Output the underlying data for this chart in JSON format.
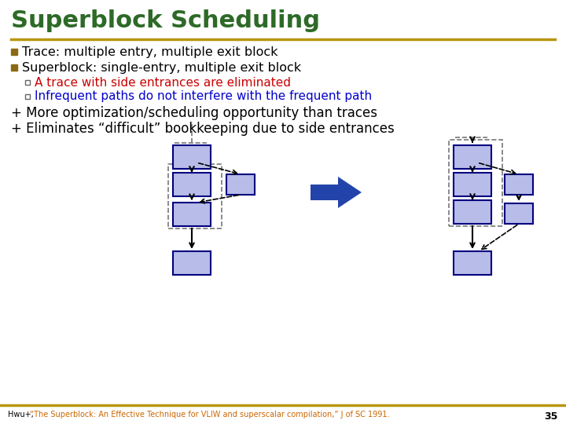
{
  "title": "Superblock Scheduling",
  "title_color": "#2d6a27",
  "title_fontsize": 22,
  "sep_color": "#b8960c",
  "bg_color": "#ffffff",
  "bullet_color": "#8B6914",
  "bullet1": "Trace: multiple entry, multiple exit block",
  "bullet2": "Superblock: single-entry, multiple exit block",
  "sub1_color": "#cc0000",
  "sub1": "A trace with side entrances are eliminated",
  "sub2_color": "#0000cc",
  "sub2": "Infrequent paths do not interfere with the frequent path",
  "plus1": "+ More optimization/scheduling opportunity than traces",
  "plus2": "+ Eliminates “difficult” bookkeeping due to side entrances",
  "block_fill": "#b8bce8",
  "block_edge": "#000080",
  "arrow_blue": "#2244aa",
  "footer_orange": "#cc6600",
  "footer_black": "#000000",
  "footer_plain": "Hwu+, ",
  "footer_cite": "“The Superblock: An Effective Technique for VLIW and superscalar compilation,” J of SC 1991.",
  "page_num": "35"
}
